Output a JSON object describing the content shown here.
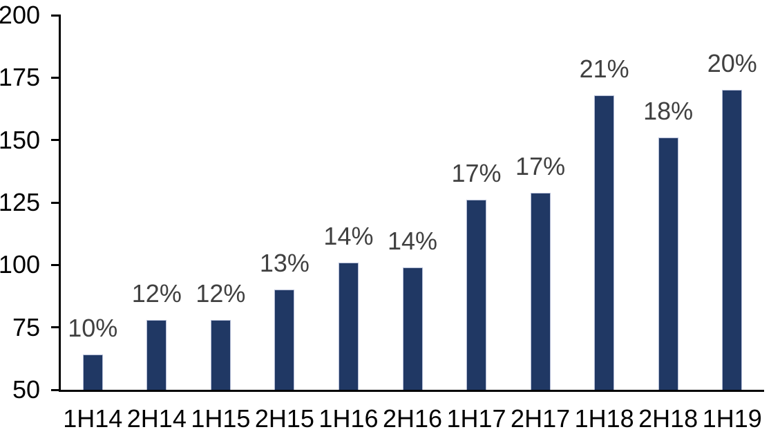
{
  "chart_data": {
    "type": "bar",
    "title": "",
    "xlabel": "",
    "ylabel": "",
    "categories": [
      "1H14",
      "2H14",
      "1H15",
      "2H15",
      "1H16",
      "2H16",
      "1H17",
      "2H17",
      "1H18",
      "2H18",
      "1H19"
    ],
    "values": [
      64,
      78,
      78,
      90,
      101,
      99,
      126,
      129,
      168,
      151,
      170
    ],
    "bar_labels": [
      "10%",
      "12%",
      "12%",
      "13%",
      "14%",
      "14%",
      "17%",
      "17%",
      "21%",
      "18%",
      "20%"
    ],
    "ylim": [
      50,
      200
    ],
    "y_ticks": [
      50,
      75,
      100,
      125,
      150,
      175,
      200
    ],
    "grid": false,
    "legend": false,
    "colors": {
      "bar_fill": "#203864",
      "bar_border": "#b3bcd6",
      "bar_label_text": "#404040",
      "axis_line": "#000000",
      "axis_text": "#000000",
      "background": "#ffffff"
    }
  }
}
